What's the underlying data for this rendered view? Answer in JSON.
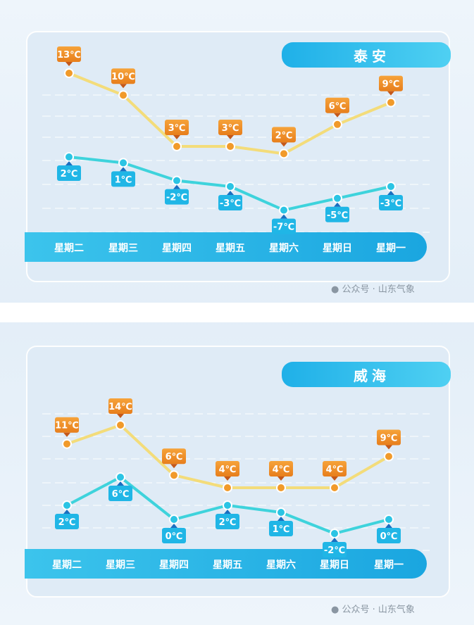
{
  "chart_data": [
    {
      "type": "line",
      "title": "泰安",
      "categories": [
        "星期二",
        "星期三",
        "星期四",
        "星期五",
        "星期六",
        "星期日",
        "星期一"
      ],
      "series": [
        {
          "kind": "high",
          "values": [
            13,
            10,
            3,
            3,
            2,
            6,
            9
          ],
          "color": "#f5a623"
        },
        {
          "kind": "low",
          "values": [
            2,
            1,
            -2,
            -3,
            -7,
            -5,
            -3
          ],
          "color": "#27c3e0"
        }
      ],
      "unit": "℃",
      "grid": true
    },
    {
      "type": "line",
      "title": "威海",
      "categories": [
        "星期二",
        "星期三",
        "星期四",
        "星期五",
        "星期六",
        "星期日",
        "星期一"
      ],
      "series": [
        {
          "kind": "high",
          "values": [
            11,
            14,
            6,
            4,
            4,
            4,
            9
          ],
          "color": "#f5a623"
        },
        {
          "kind": "low",
          "values": [
            2,
            6,
            0,
            2,
            1,
            -2,
            0
          ],
          "color": "#27c3e0"
        }
      ],
      "unit": "℃",
      "grid": true
    }
  ],
  "watermark": "公众号 · 山东气象"
}
